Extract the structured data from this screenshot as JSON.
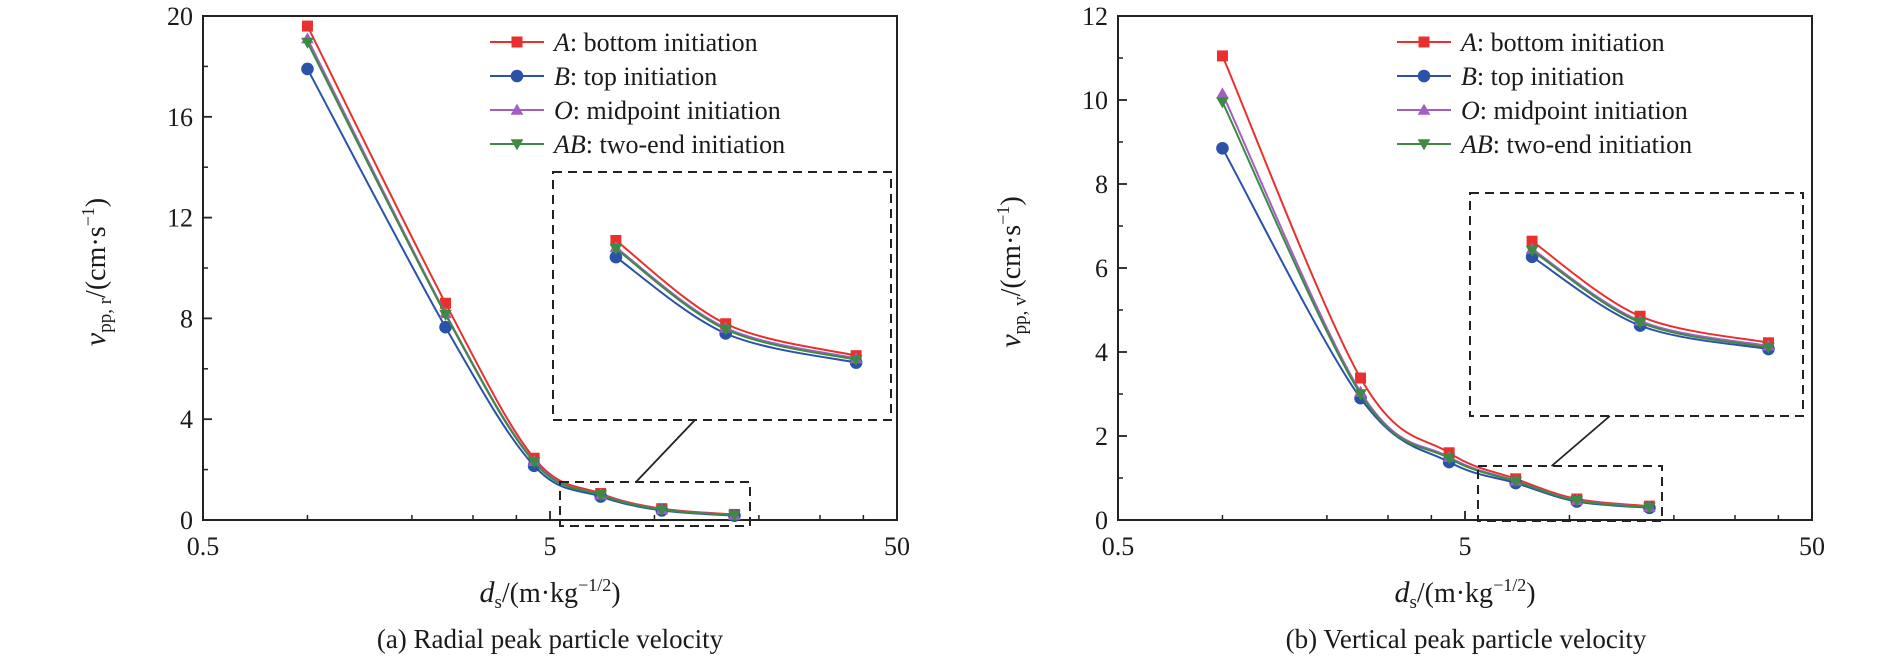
{
  "series_styles": [
    {
      "color": "#e8312f",
      "marker": "square"
    },
    {
      "color": "#2a52a8",
      "marker": "circle"
    },
    {
      "color": "#a25fc1",
      "marker": "triangle-up"
    },
    {
      "color": "#3d8a45",
      "marker": "triangle-down"
    }
  ],
  "legend": [
    {
      "italic": "A",
      "rest": ": bottom initiation"
    },
    {
      "italic": "B",
      "rest": ": top initiation"
    },
    {
      "italic": "O",
      "rest": ": midpoint initiation"
    },
    {
      "italic": "AB",
      "rest": ": two-end initiation"
    }
  ],
  "xlabel": {
    "v": "d",
    "sub": "s",
    "unit_pre": "/(m·kg",
    "sup": "−1/2",
    "unit_post": ")"
  },
  "chart_data": [
    {
      "type": "line",
      "caption": "(a) Radial peak particle velocity",
      "ylabel": {
        "v": "v",
        "sub": "pp, r",
        "unit_pre": "/(cm·s",
        "sup": "−1",
        "unit_post": ")"
      },
      "xscale": "log",
      "xlim": [
        0.5,
        50
      ],
      "ylim": [
        0,
        20
      ],
      "xticks": [
        "0.5",
        "5",
        "50"
      ],
      "yticks": [
        "0",
        "4",
        "8",
        "12",
        "16",
        "20"
      ],
      "x": [
        1.0,
        2.5,
        4.5,
        7.0,
        10.5,
        17.0
      ],
      "series": [
        {
          "name": "A: bottom initiation",
          "values": [
            19.6,
            8.6,
            2.45,
            1.05,
            0.45,
            0.22
          ]
        },
        {
          "name": "B: top initiation",
          "values": [
            17.9,
            7.65,
            2.15,
            0.93,
            0.38,
            0.17
          ]
        },
        {
          "name": "O: midpoint initiation",
          "values": [
            19.1,
            8.2,
            2.33,
            1.0,
            0.42,
            0.2
          ]
        },
        {
          "name": "AB: two-end initiation",
          "values": [
            18.95,
            8.15,
            2.3,
            0.99,
            0.41,
            0.19
          ]
        }
      ],
      "grid": false,
      "legend_position": "top-right",
      "inset": {
        "zoom_range_x": [
          5.8,
          18.5
        ],
        "zoom_range_y": [
          -0.2,
          1.5
        ]
      }
    },
    {
      "type": "line",
      "caption": "(b) Vertical peak particle velocity",
      "ylabel": {
        "v": "v",
        "sub": "pp, v",
        "unit_pre": "/(cm·s",
        "sup": "−1",
        "unit_post": ")"
      },
      "xscale": "log",
      "xlim": [
        0.5,
        50
      ],
      "ylim": [
        0,
        12
      ],
      "xticks": [
        "0.5",
        "5",
        "50"
      ],
      "yticks": [
        "0",
        "2",
        "4",
        "6",
        "8",
        "10",
        "12"
      ],
      "x": [
        1.0,
        2.5,
        4.5,
        7.0,
        10.5,
        17.0
      ],
      "series": [
        {
          "name": "A: bottom initiation",
          "values": [
            11.05,
            3.38,
            1.6,
            0.98,
            0.5,
            0.33
          ]
        },
        {
          "name": "B: top initiation",
          "values": [
            8.85,
            2.9,
            1.38,
            0.88,
            0.44,
            0.29
          ]
        },
        {
          "name": "O: midpoint initiation",
          "values": [
            10.15,
            3.05,
            1.5,
            0.93,
            0.47,
            0.31
          ]
        },
        {
          "name": "AB: two-end initiation",
          "values": [
            9.95,
            3.0,
            1.47,
            0.92,
            0.46,
            0.3
          ]
        }
      ],
      "grid": false,
      "legend_position": "top-right",
      "inset": {
        "zoom_range_x": [
          5.8,
          18.5
        ],
        "zoom_range_y": [
          -0.1,
          1.25
        ]
      }
    }
  ]
}
